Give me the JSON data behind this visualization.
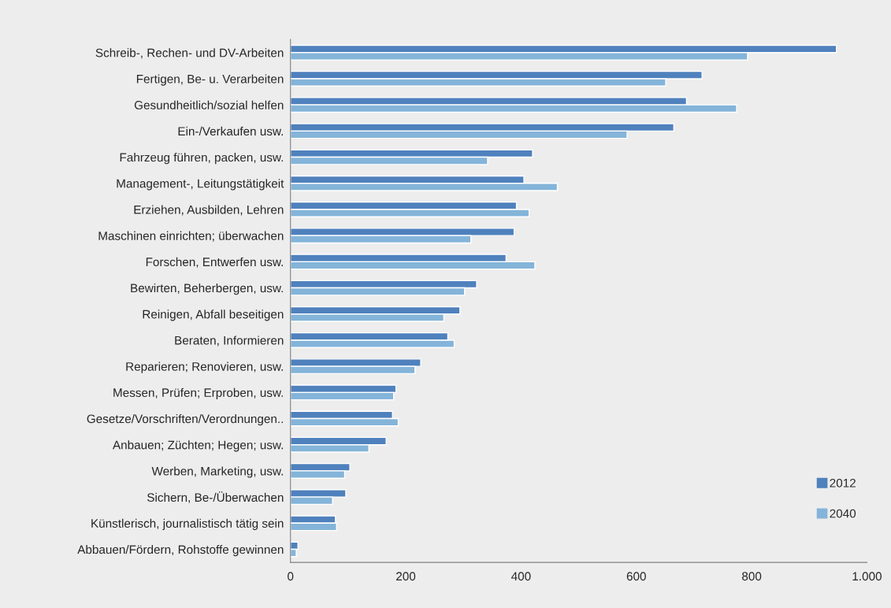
{
  "chart_data": {
    "type": "bar",
    "orientation": "horizontal",
    "categories": [
      "Schreib-, Rechen- und DV-Arbeiten",
      "Fertigen, Be- u. Verarbeiten",
      "Gesundheitlich/sozial helfen",
      "Ein-/Verkaufen usw.",
      "Fahrzeug führen, packen, usw.",
      "Management-, Leitungstätigkeit",
      "Erziehen, Ausbilden, Lehren",
      "Maschinen einrichten; überwachen",
      "Forschen, Entwerfen usw.",
      "Bewirten, Beherbergen, usw.",
      "Reinigen, Abfall beseitigen",
      "Beraten, Informieren",
      "Reparieren; Renovieren, usw.",
      "Messen, Prüfen; Erproben, usw.",
      "Gesetze/Vorschriften/Verordnungen..",
      "Anbauen; Züchten; Hegen; usw.",
      "Werben, Marketing, usw.",
      "Sichern, Be-/Überwachen",
      "Künstlerisch, journalistisch tätig sein",
      "Abbauen/Fördern, Rohstoffe gewinnen"
    ],
    "series": [
      {
        "name": "2012",
        "color": "#4f81bd",
        "values": [
          947,
          714,
          687,
          665,
          420,
          405,
          392,
          388,
          374,
          323,
          294,
          273,
          226,
          183,
          177,
          166,
          103,
          96,
          78,
          13
        ]
      },
      {
        "name": "2040",
        "color": "#84b4d9",
        "values": [
          793,
          651,
          774,
          584,
          342,
          463,
          414,
          313,
          424,
          302,
          266,
          284,
          216,
          179,
          187,
          136,
          94,
          73,
          80,
          10
        ]
      }
    ],
    "xlim": [
      0,
      1000
    ],
    "xticks": [
      0,
      200,
      400,
      600,
      800,
      {
        "value": 1000,
        "label": "1.000"
      }
    ],
    "grid": false,
    "legend": "bottom right"
  }
}
